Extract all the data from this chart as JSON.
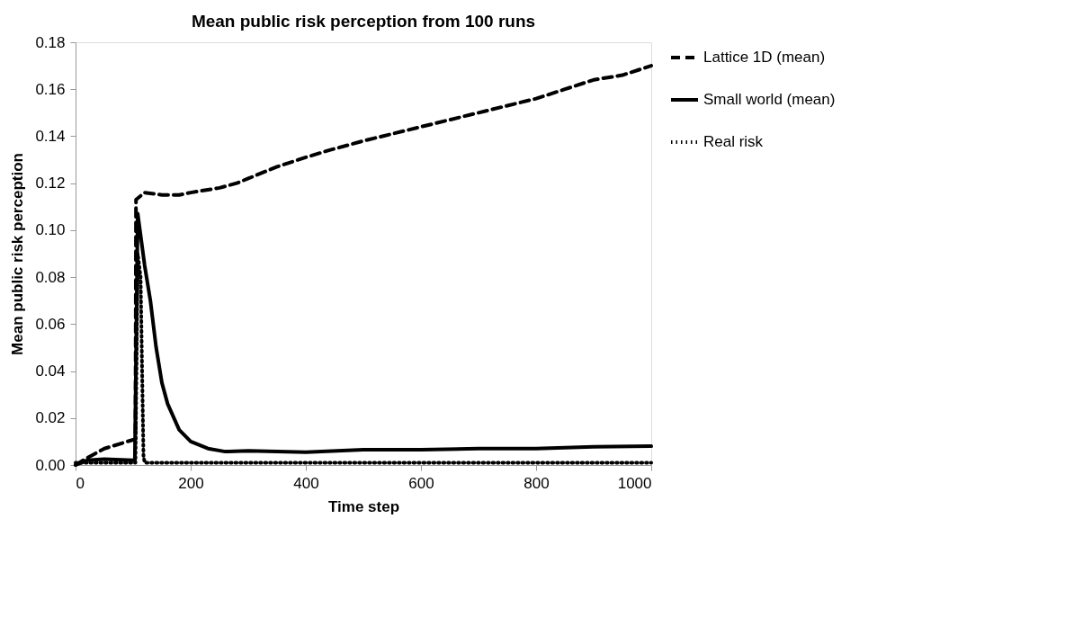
{
  "chart_data": {
    "type": "line",
    "title": "Mean public risk perception from 100 runs",
    "xlabel": "Time step",
    "ylabel": "Mean public risk perception",
    "xlim": [
      0,
      1000
    ],
    "xticks": [
      0,
      200,
      400,
      600,
      800,
      1000
    ],
    "ylim": [
      0,
      0.18
    ],
    "yticks": [
      {
        "value": 0,
        "label": "0.00"
      },
      {
        "value": 0.02,
        "label": "0.02"
      },
      {
        "value": 0.04,
        "label": "0.04"
      },
      {
        "value": 0.06,
        "label": "0.06"
      },
      {
        "value": 0.08,
        "label": "0.08"
      },
      {
        "value": 0.1,
        "label": "0.10"
      },
      {
        "value": 0.12,
        "label": "0.12"
      },
      {
        "value": 0.14,
        "label": "0.14"
      },
      {
        "value": 0.16,
        "label": "0.16"
      },
      {
        "value": 0.18,
        "label": "0.18"
      }
    ],
    "grid": false,
    "legend": "right",
    "marker": "none",
    "series": [
      {
        "name": "Lattice 1D (mean)",
        "color": "#000000",
        "line_style": "dashed",
        "x": [
          0,
          20,
          50,
          90,
          104,
          105,
          120,
          150,
          180,
          200,
          250,
          280,
          300,
          350,
          400,
          440,
          500,
          550,
          600,
          650,
          700,
          750,
          800,
          850,
          900,
          950,
          1000
        ],
        "values": [
          0,
          0.003,
          0.007,
          0.01,
          0.011,
          0.113,
          0.116,
          0.115,
          0.115,
          0.116,
          0.118,
          0.12,
          0.122,
          0.127,
          0.131,
          0.134,
          0.138,
          0.141,
          0.144,
          0.147,
          0.15,
          0.153,
          0.156,
          0.16,
          0.164,
          0.166,
          0.17
        ]
      },
      {
        "name": "Small world (mean)",
        "color": "#000000",
        "line_style": "solid",
        "x": [
          0,
          20,
          50,
          100,
          103,
          108,
          120,
          130,
          140,
          150,
          160,
          180,
          200,
          230,
          260,
          300,
          400,
          500,
          600,
          700,
          800,
          900,
          1000
        ],
        "values": [
          0,
          0.002,
          0.0025,
          0.002,
          0.002,
          0.107,
          0.085,
          0.07,
          0.05,
          0.035,
          0.026,
          0.015,
          0.01,
          0.007,
          0.0057,
          0.006,
          0.0055,
          0.0065,
          0.0065,
          0.007,
          0.007,
          0.0078,
          0.008
        ]
      },
      {
        "name": "Real risk",
        "color": "#000000",
        "line_style": "dotted",
        "x": [
          0,
          104,
          108,
          113,
          118,
          120,
          1000
        ],
        "values": [
          0.001,
          0.001,
          0.09,
          0.08,
          0.004,
          0.001,
          0.001
        ]
      }
    ]
  }
}
